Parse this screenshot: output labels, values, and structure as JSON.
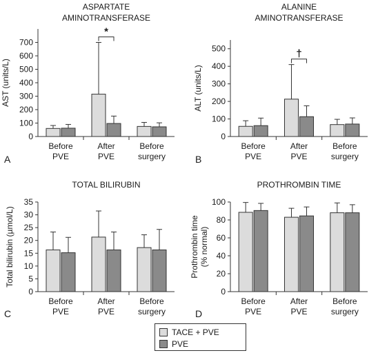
{
  "colors": {
    "series1": "#dcdcdc",
    "series2": "#8a8a8a",
    "axis": "#333333"
  },
  "legend": {
    "placement": "bottom-center",
    "items": [
      {
        "name": "TACE + PVE",
        "color": "#dcdcdc"
      },
      {
        "name": "PVE",
        "color": "#8a8a8a"
      }
    ]
  },
  "chart_data": [
    {
      "type": "bar",
      "panel_letter": "A",
      "title_lines": [
        "ASPARTATE",
        "AMINOTRANSFERASE"
      ],
      "ylabel": "AST (units/L)",
      "xlabel": "",
      "ylim": [
        0,
        800
      ],
      "yticks": [
        0,
        100,
        200,
        300,
        400,
        500,
        600,
        700
      ],
      "grid": false,
      "categories": [
        [
          "Before",
          "PVE"
        ],
        [
          "After",
          "PVE"
        ],
        [
          "Before",
          "surgery"
        ]
      ],
      "series": [
        {
          "name": "TACE + PVE",
          "values": [
            60,
            315,
            75
          ],
          "errors": [
            22,
            385,
            30
          ]
        },
        {
          "name": "PVE",
          "values": [
            62,
            97,
            72
          ],
          "errors": [
            28,
            55,
            30
          ]
        }
      ],
      "annotation": {
        "text": "*",
        "category_index": 1
      }
    },
    {
      "type": "bar",
      "panel_letter": "B",
      "title_lines": [
        "ALANINE",
        "AMINOTRANSFERASE"
      ],
      "ylabel": "ALT (units/L)",
      "xlabel": "",
      "ylim": [
        0,
        550
      ],
      "yticks": [
        0,
        100,
        200,
        300,
        400,
        500
      ],
      "grid": false,
      "categories": [
        [
          "Before",
          "PVE"
        ],
        [
          "After",
          "PVE"
        ],
        [
          "Before",
          "surgery"
        ]
      ],
      "series": [
        {
          "name": "TACE + PVE",
          "values": [
            58,
            213,
            68
          ],
          "errors": [
            32,
            197,
            30
          ]
        },
        {
          "name": "PVE",
          "values": [
            62,
            113,
            71
          ],
          "errors": [
            43,
            62,
            35
          ]
        }
      ],
      "annotation": {
        "text": "†",
        "category_index": 1
      }
    },
    {
      "type": "bar",
      "panel_letter": "C",
      "title_lines": [
        "TOTAL BILIRUBIN"
      ],
      "ylabel": "Total bilirubin (µmol/L)",
      "xlabel": "",
      "ylim": [
        0,
        35
      ],
      "yticks": [
        0,
        5,
        10,
        15,
        20,
        25,
        30,
        35
      ],
      "grid": false,
      "categories": [
        [
          "Before",
          "PVE"
        ],
        [
          "After",
          "PVE"
        ],
        [
          "Before",
          "surgery"
        ]
      ],
      "series": [
        {
          "name": "TACE + PVE",
          "values": [
            16.3,
            21.3,
            17.2
          ],
          "errors": [
            7,
            10.2,
            5
          ]
        },
        {
          "name": "PVE",
          "values": [
            15.2,
            16.3,
            16.3
          ],
          "errors": [
            6,
            7,
            8
          ]
        }
      ],
      "annotation": null
    },
    {
      "type": "bar",
      "panel_letter": "D",
      "title_lines": [
        "PROTHROMBIN TIME"
      ],
      "ylabel_lines": [
        "Prothrombin time",
        "(% normal)"
      ],
      "xlabel": "",
      "ylim": [
        0,
        100
      ],
      "yticks": [
        0,
        20,
        40,
        60,
        80,
        100
      ],
      "grid": false,
      "categories": [
        [
          "Before",
          "PVE"
        ],
        [
          "After",
          "PVE"
        ],
        [
          "Before",
          "surgery"
        ]
      ],
      "series": [
        {
          "name": "TACE + PVE",
          "values": [
            88.5,
            83,
            88
          ],
          "errors": [
            11,
            10,
            11
          ]
        },
        {
          "name": "PVE",
          "values": [
            90.5,
            84.5,
            88
          ],
          "errors": [
            8,
            10,
            9
          ]
        }
      ],
      "annotation": null
    }
  ]
}
